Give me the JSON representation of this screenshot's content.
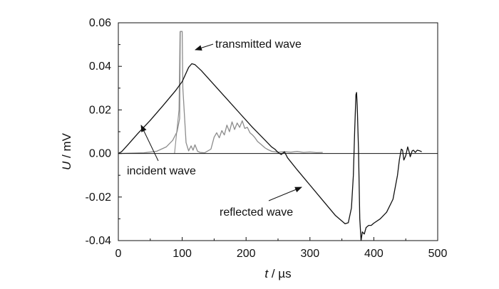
{
  "chart_data": {
    "type": "line",
    "xlabel_var": "t",
    "xlabel_unit": " / µs",
    "ylabel_var": "U",
    "ylabel_unit": " / mV",
    "xlim": [
      0,
      500
    ],
    "ylim": [
      -0.04,
      0.06
    ],
    "x_ticks": [
      0,
      100,
      200,
      300,
      400,
      500
    ],
    "y_ticks": [
      0.06,
      0.04,
      0.02,
      0.0,
      -0.02,
      -0.04
    ],
    "x_tick_labels": [
      "0",
      "100",
      "200",
      "300",
      "400",
      "500"
    ],
    "y_tick_labels": [
      "0.06",
      "0.04",
      "0.02",
      "0.00",
      "-0.02",
      "-0.04"
    ],
    "grid": false,
    "zero_line": true,
    "colors": {
      "incident_reflected": "#111111",
      "transmitted": "#8c8c8c"
    },
    "series": [
      {
        "color": "#111111",
        "points": [
          [
            0,
            0.0
          ],
          [
            5,
            0.0008
          ],
          [
            15,
            0.004
          ],
          [
            30,
            0.009
          ],
          [
            50,
            0.0152
          ],
          [
            70,
            0.022
          ],
          [
            90,
            0.029
          ],
          [
            100,
            0.033
          ],
          [
            110,
            0.0395
          ],
          [
            115,
            0.0412
          ],
          [
            120,
            0.0408
          ],
          [
            130,
            0.038
          ],
          [
            150,
            0.0315
          ],
          [
            170,
            0.025
          ],
          [
            190,
            0.0185
          ],
          [
            210,
            0.012
          ],
          [
            230,
            0.006
          ],
          [
            240,
            0.003
          ],
          [
            245,
            0.002
          ],
          [
            250,
            0.0005
          ],
          [
            255,
            -0.0005
          ],
          [
            260,
            0.0008
          ],
          [
            265,
            -0.002
          ],
          [
            280,
            -0.0075
          ],
          [
            300,
            -0.0145
          ],
          [
            320,
            -0.0215
          ],
          [
            340,
            -0.0285
          ],
          [
            355,
            -0.0323
          ],
          [
            360,
            -0.0318
          ],
          [
            365,
            -0.025
          ],
          [
            368,
            -0.01
          ],
          [
            370,
            0.01
          ],
          [
            372,
            0.027
          ],
          [
            373,
            0.028
          ],
          [
            374,
            0.022
          ],
          [
            376,
            0.002
          ],
          [
            378,
            -0.03
          ],
          [
            380,
            -0.04
          ],
          [
            382,
            -0.036
          ],
          [
            385,
            -0.037
          ],
          [
            388,
            -0.034
          ],
          [
            392,
            -0.033
          ],
          [
            396,
            -0.033
          ],
          [
            400,
            -0.032
          ],
          [
            410,
            -0.03
          ],
          [
            420,
            -0.027
          ],
          [
            430,
            -0.021
          ],
          [
            437,
            -0.01
          ],
          [
            440,
            -0.003
          ],
          [
            443,
            0.002
          ],
          [
            445,
            0.0015
          ],
          [
            447,
            -0.003
          ],
          [
            450,
            -0.001
          ],
          [
            453,
            0.003
          ],
          [
            455,
            0.001
          ],
          [
            457,
            -0.0015
          ],
          [
            460,
            0.0012
          ],
          [
            462,
            0.0015
          ],
          [
            465,
            0.0005
          ],
          [
            468,
            0.0015
          ],
          [
            472,
            0.0012
          ],
          [
            475,
            0.0008
          ]
        ]
      },
      {
        "color": "#8c8c8c",
        "points": [
          [
            0,
            0.0
          ],
          [
            40,
            0.0003
          ],
          [
            60,
            0.001
          ],
          [
            75,
            0.003
          ],
          [
            85,
            0.006
          ],
          [
            92,
            0.01
          ],
          [
            96,
            0.016
          ],
          [
            97,
            0.056
          ],
          [
            100,
            0.056
          ],
          [
            101,
            0.03
          ],
          [
            103,
            0.02
          ],
          [
            106,
            0.005
          ],
          [
            110,
            0.0012
          ],
          [
            114,
            0.0035
          ],
          [
            117,
            0.0015
          ],
          [
            120,
            0.004
          ],
          [
            124,
            0.001
          ],
          [
            128,
            0.0005
          ],
          [
            135,
            0.0003
          ],
          [
            145,
            0.002
          ],
          [
            150,
            0.0075
          ],
          [
            154,
            0.0095
          ],
          [
            158,
            0.0072
          ],
          [
            162,
            0.0105
          ],
          [
            166,
            0.0085
          ],
          [
            170,
            0.013
          ],
          [
            174,
            0.01
          ],
          [
            178,
            0.0145
          ],
          [
            182,
            0.011
          ],
          [
            186,
            0.014
          ],
          [
            190,
            0.012
          ],
          [
            194,
            0.015
          ],
          [
            198,
            0.0115
          ],
          [
            202,
            0.012
          ],
          [
            206,
            0.0095
          ],
          [
            210,
            0.0085
          ],
          [
            214,
            0.0072
          ],
          [
            218,
            0.0055
          ],
          [
            222,
            0.0045
          ],
          [
            226,
            0.0035
          ],
          [
            230,
            0.0025
          ],
          [
            234,
            0.0018
          ],
          [
            240,
            0.001
          ],
          [
            250,
            0.0006
          ],
          [
            260,
            0.0008
          ],
          [
            270,
            0.0006
          ],
          [
            280,
            0.0009
          ],
          [
            290,
            0.0005
          ],
          [
            300,
            0.0007
          ],
          [
            310,
            0.0004
          ],
          [
            320,
            0.0005
          ]
        ],
        "lead_in": [
          [
            88,
            -0.0001
          ],
          [
            95,
            0.02
          ],
          [
            96.5,
            0.056
          ]
        ]
      }
    ],
    "annotations": [
      {
        "text": "transmitted wave",
        "x": 120,
        "y": 0.0495
      },
      {
        "text": "incident wave",
        "x": 12,
        "y": -0.0085
      },
      {
        "text": "reflected wave",
        "x": 158,
        "y": -0.028
      }
    ]
  }
}
